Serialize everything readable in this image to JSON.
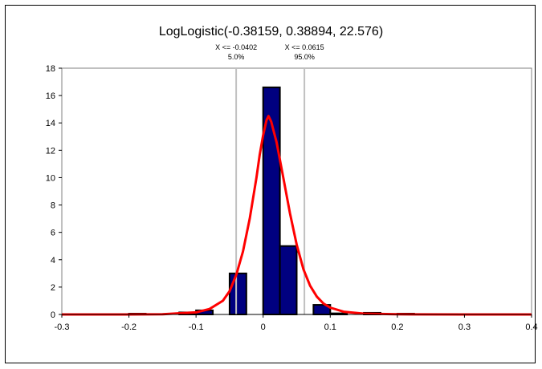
{
  "chart_data": {
    "type": "bar",
    "title": "LogLogistic(-0.38159, 0.38894, 22.576)",
    "xlim": [
      -0.3,
      0.4
    ],
    "ylim": [
      0,
      18
    ],
    "x_ticks": [
      "-0.3",
      "-0.2",
      "-0.1",
      "0",
      "0.1",
      "0.2",
      "0.3",
      "0.4"
    ],
    "y_ticks": [
      "0",
      "2",
      "4",
      "6",
      "8",
      "10",
      "12",
      "14",
      "16",
      "18"
    ],
    "bin_width": 0.025,
    "histogram": [
      {
        "x0": -0.2,
        "x1": -0.175,
        "value": 0.06
      },
      {
        "x0": -0.125,
        "x1": -0.1,
        "value": 0.15
      },
      {
        "x0": -0.1,
        "x1": -0.075,
        "value": 0.3
      },
      {
        "x0": -0.05,
        "x1": -0.025,
        "value": 3.0
      },
      {
        "x0": -0.025,
        "x1": 0.0,
        "value": 0.0
      },
      {
        "x0": 0.0,
        "x1": 0.025,
        "value": 16.6
      },
      {
        "x0": 0.025,
        "x1": 0.05,
        "value": 5.0
      },
      {
        "x0": 0.075,
        "x1": 0.1,
        "value": 0.7
      },
      {
        "x0": 0.1,
        "x1": 0.125,
        "value": 0.08
      },
      {
        "x0": 0.15,
        "x1": 0.175,
        "value": 0.12
      },
      {
        "x0": 0.2,
        "x1": 0.225,
        "value": 0.06
      }
    ],
    "curve": {
      "name": "LogLogistic(-0.38159, 0.38894, 22.576)",
      "points": [
        [
          -0.3,
          0.0
        ],
        [
          -0.2,
          0.0
        ],
        [
          -0.15,
          0.02
        ],
        [
          -0.1,
          0.15
        ],
        [
          -0.08,
          0.4
        ],
        [
          -0.06,
          1.0
        ],
        [
          -0.05,
          1.7
        ],
        [
          -0.04,
          2.9
        ],
        [
          -0.03,
          4.6
        ],
        [
          -0.02,
          7.0
        ],
        [
          -0.01,
          10.0
        ],
        [
          -0.005,
          11.7
        ],
        [
          0.0,
          13.1
        ],
        [
          0.005,
          14.2
        ],
        [
          0.008,
          14.5
        ],
        [
          0.012,
          14.1
        ],
        [
          0.02,
          12.6
        ],
        [
          0.03,
          10.0
        ],
        [
          0.04,
          7.4
        ],
        [
          0.05,
          5.1
        ],
        [
          0.06,
          3.3
        ],
        [
          0.07,
          2.1
        ],
        [
          0.08,
          1.3
        ],
        [
          0.09,
          0.8
        ],
        [
          0.1,
          0.5
        ],
        [
          0.12,
          0.2
        ],
        [
          0.15,
          0.06
        ],
        [
          0.2,
          0.01
        ],
        [
          0.3,
          0.0
        ],
        [
          0.4,
          0.0
        ]
      ]
    },
    "markers": [
      {
        "x": -0.0402,
        "label": "X <= -0.0402",
        "percent": "5.0%"
      },
      {
        "x": 0.0615,
        "label": "X <= 0.0615",
        "percent": "95.0%"
      }
    ],
    "colors": {
      "bars": "#000080",
      "curve": "#ff0000",
      "markers": "#c0c0c0"
    }
  }
}
